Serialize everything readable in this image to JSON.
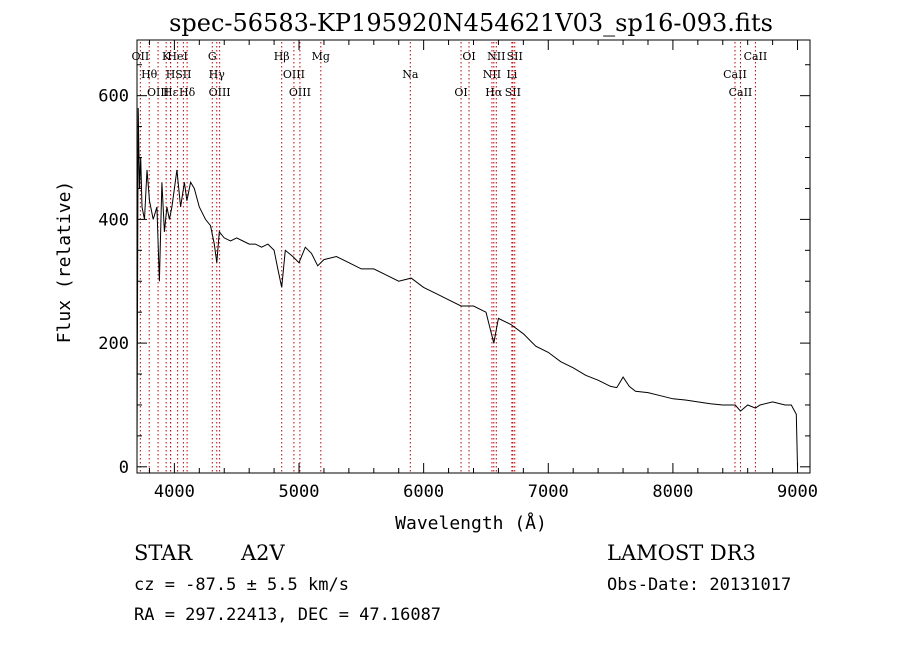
{
  "chart_data": {
    "type": "line",
    "title": "spec-56583-KP195920N454621V03_sp16-093.fits",
    "xlabel": "Wavelength (Å)",
    "ylabel": "Flux (relative)",
    "xlim": [
      3700,
      9100
    ],
    "ylim": [
      -10,
      690
    ],
    "xticks": [
      4000,
      5000,
      6000,
      7000,
      8000,
      9000
    ],
    "yticks": [
      0,
      200,
      400,
      600
    ],
    "grid": false,
    "series": [
      {
        "name": "flux",
        "x": [
          3700,
          3710,
          3720,
          3730,
          3740,
          3760,
          3780,
          3800,
          3830,
          3860,
          3880,
          3900,
          3920,
          3940,
          3960,
          3980,
          4000,
          4020,
          4050,
          4080,
          4100,
          4130,
          4160,
          4200,
          4250,
          4290,
          4320,
          4340,
          4360,
          4400,
          4450,
          4500,
          4550,
          4600,
          4650,
          4700,
          4750,
          4800,
          4830,
          4861,
          4890,
          4950,
          5000,
          5050,
          5100,
          5150,
          5200,
          5300,
          5400,
          5500,
          5600,
          5700,
          5800,
          5900,
          6000,
          6100,
          6200,
          6300,
          6400,
          6500,
          6563,
          6600,
          6700,
          6800,
          6900,
          7000,
          7100,
          7200,
          7300,
          7400,
          7500,
          7550,
          7600,
          7650,
          7700,
          7800,
          7900,
          8000,
          8100,
          8200,
          8300,
          8400,
          8500,
          8542,
          8600,
          8662,
          8700,
          8800,
          8900,
          8950,
          8990,
          9000
        ],
        "y": [
          20,
          580,
          450,
          500,
          420,
          400,
          480,
          430,
          400,
          420,
          300,
          460,
          380,
          420,
          400,
          420,
          450,
          480,
          420,
          460,
          430,
          460,
          450,
          420,
          400,
          390,
          360,
          330,
          380,
          370,
          365,
          370,
          365,
          360,
          360,
          355,
          360,
          350,
          320,
          290,
          350,
          340,
          330,
          355,
          345,
          325,
          335,
          340,
          330,
          320,
          320,
          310,
          300,
          305,
          290,
          280,
          270,
          260,
          260,
          250,
          200,
          240,
          230,
          215,
          195,
          185,
          170,
          160,
          148,
          140,
          130,
          128,
          145,
          130,
          122,
          120,
          115,
          110,
          108,
          105,
          102,
          100,
          100,
          90,
          100,
          95,
          100,
          105,
          100,
          100,
          85,
          0
        ]
      }
    ],
    "line_markers": [
      {
        "label": "OII",
        "x": 3727
      },
      {
        "label": "Hθ",
        "x": 3798
      },
      {
        "label": "OIII",
        "x": 3869
      },
      {
        "label": "K",
        "x": 3934
      },
      {
        "label": "H",
        "x": 3969
      },
      {
        "label": "Hε",
        "x": 3970
      },
      {
        "label": "HeI",
        "x": 4026
      },
      {
        "label": "Hδ",
        "x": 4102
      },
      {
        "label": "SII",
        "x": 4072
      },
      {
        "label": "OIII",
        "x": 4363
      },
      {
        "label": "Hγ",
        "x": 4340
      },
      {
        "label": "G",
        "x": 4304
      },
      {
        "label": "Hβ",
        "x": 4861
      },
      {
        "label": "OIII",
        "x": 4959
      },
      {
        "label": "OIII",
        "x": 5007
      },
      {
        "label": "Mg",
        "x": 5175
      },
      {
        "label": "Na",
        "x": 5893
      },
      {
        "label": "OI",
        "x": 6300
      },
      {
        "label": "OI",
        "x": 6364
      },
      {
        "label": "Hα",
        "x": 6563
      },
      {
        "label": "NII",
        "x": 6548
      },
      {
        "label": "NII",
        "x": 6583
      },
      {
        "label": "Li",
        "x": 6708
      },
      {
        "label": "SII",
        "x": 6716
      },
      {
        "label": "SII",
        "x": 6731
      },
      {
        "label": "CaII",
        "x": 8498
      },
      {
        "label": "CaII",
        "x": 8542
      },
      {
        "label": "CaII",
        "x": 8662
      }
    ]
  },
  "info": {
    "object_class": "STAR",
    "subclass": "A2V",
    "survey": "LAMOST DR3",
    "cz": "cz = -87.5 ± 5.5 km/s",
    "obs_date": "Obs-Date: 20131017",
    "coords": "RA = 297.22413, DEC =  47.16087"
  },
  "colors": {
    "line": "#000000",
    "marker": "#c00000",
    "axes": "#000000",
    "background": "#ffffff"
  }
}
